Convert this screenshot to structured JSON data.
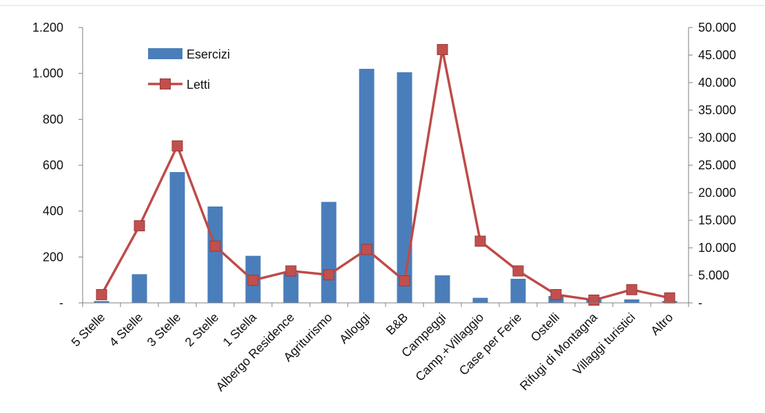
{
  "chart_data": {
    "type": "bar",
    "categories": [
      "5 Stelle",
      "4 Stelle",
      "3 Stelle",
      "2 Stelle",
      "1 Stella",
      "Albergo Residence",
      "Agriturismo",
      "Alloggi",
      "B&B",
      "Campeggi",
      "Camp.+Villaggio",
      "Case per Ferie",
      "Ostelli",
      "Rifugi di Montagna",
      "Villaggi turistici",
      "Altro"
    ],
    "series": [
      {
        "name": "Esercizi",
        "axis": "left",
        "kind": "bar",
        "color": "#4a7ebb",
        "values": [
          8,
          125,
          570,
          420,
          205,
          130,
          440,
          1020,
          1005,
          120,
          22,
          105,
          30,
          20,
          15,
          8
        ]
      },
      {
        "name": "Letti",
        "axis": "right",
        "kind": "line",
        "color": "#be4b48",
        "marker_color": "#c0504d",
        "values": [
          1500,
          14000,
          28500,
          10300,
          4100,
          5800,
          5100,
          9700,
          4000,
          46000,
          11200,
          5800,
          1500,
          500,
          2400,
          900
        ]
      }
    ],
    "y_left": {
      "ylim": [
        0,
        1200
      ],
      "ticks": [
        0,
        200,
        400,
        600,
        800,
        1000,
        1200
      ],
      "tick_labels": [
        "-",
        "200",
        "400",
        "600",
        "800",
        "1.000",
        "1.200"
      ]
    },
    "y_right": {
      "ylim": [
        0,
        50000
      ],
      "ticks": [
        0,
        5000,
        10000,
        15000,
        20000,
        25000,
        30000,
        35000,
        40000,
        45000,
        50000
      ],
      "tick_labels": [
        "-",
        "5.000",
        "10.000",
        "15.000",
        "20.000",
        "25.000",
        "30.000",
        "35.000",
        "40.000",
        "45.000",
        "50.000"
      ]
    },
    "title": "",
    "xlabel": "",
    "ylabel": "",
    "grid": false,
    "legend_position": "top-left"
  }
}
